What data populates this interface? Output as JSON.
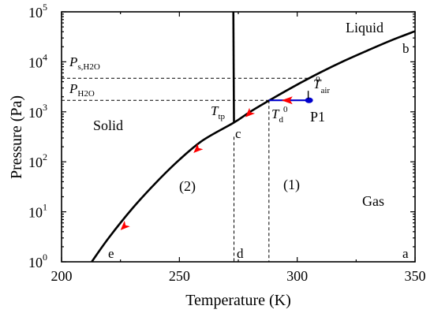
{
  "chart_data": {
    "type": "line",
    "xlabel": "Temperature (K)",
    "ylabel": "Pressure (Pa)",
    "xlim": [
      200,
      350
    ],
    "ylim_log10": [
      0,
      5
    ],
    "y_scale": "log",
    "x_ticks": [
      {
        "value": 200,
        "label": "200"
      },
      {
        "value": 250,
        "label": "250"
      },
      {
        "value": 300,
        "label": "300"
      },
      {
        "value": 350,
        "label": "350"
      }
    ],
    "y_ticks": [
      {
        "exp": 0,
        "base": "10",
        "sup": "0"
      },
      {
        "exp": 1,
        "base": "10",
        "sup": "1"
      },
      {
        "exp": 2,
        "base": "10",
        "sup": "2"
      },
      {
        "exp": 3,
        "base": "10",
        "sup": "3"
      },
      {
        "exp": 4,
        "base": "10",
        "sup": "4"
      },
      {
        "exp": 5,
        "base": "10",
        "sup": "5"
      }
    ],
    "colors": {
      "arrow": "#ff0000",
      "path": "#0000cc",
      "point": "#0000cc"
    },
    "boundary_curve": {
      "x": [
        212.8,
        220,
        230,
        240,
        250,
        260,
        273.16,
        280,
        290,
        300,
        310,
        320,
        330,
        340,
        350
      ],
      "y": [
        1.0,
        3.0,
        11.6,
        38.0,
        110,
        270,
        611,
        1000,
        1900,
        3500,
        6200,
        10500,
        17000,
        27000,
        41000
      ]
    },
    "fusion_line": {
      "x": [
        273.16,
        272.9
      ],
      "y": [
        611,
        100000
      ]
    },
    "descent_arrows": [
      {
        "x": 225,
        "y": 4.3
      },
      {
        "x": 256,
        "y": 150
      },
      {
        "x": 278,
        "y": 780
      }
    ],
    "cooling_path": {
      "x": [
        305,
        288
      ],
      "y": [
        1700,
        1700
      ]
    },
    "cooling_arrow": {
      "x": 296,
      "y": 1700
    },
    "point_P1": {
      "x": 305,
      "y": 1700
    },
    "ref_lines": {
      "ps_h2o": {
        "y": 4700,
        "x_end": 305
      },
      "p_h2o": {
        "y": 1700,
        "x_end": 288
      },
      "t_tp": {
        "x": 273.16,
        "y_start": 611
      },
      "t_d0": {
        "x": 288,
        "y_start": 1700
      }
    },
    "labels": {
      "liquid": "Liquid",
      "solid": "Solid",
      "gas": "Gas",
      "region1": "(1)",
      "region2": "(2)",
      "P1": "P1",
      "a": "a",
      "b": "b",
      "c": "c",
      "d": "d",
      "e": "e",
      "ps_main": "P",
      "ps_sub": "s,H2O",
      "ph_main": "P",
      "ph_sub": "H2O",
      "ttp_main": "T",
      "ttp_sub": "tp",
      "td_main": "T",
      "td_sub": "d",
      "td_sup": "0",
      "tair_main": "T",
      "tair_sub": "air",
      "tair_sup": "0"
    }
  }
}
